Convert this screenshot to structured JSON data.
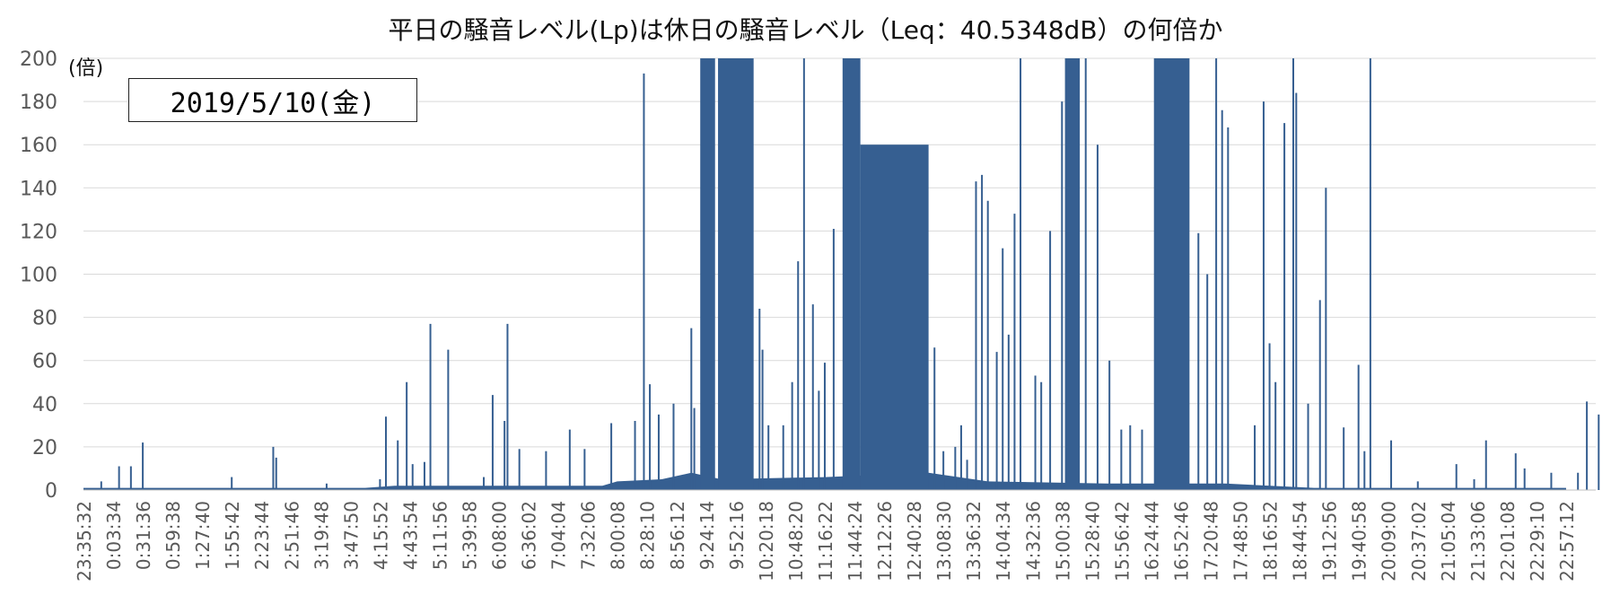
{
  "chart_data": {
    "type": "area",
    "title": "平日の騒音レベル(Lp)は休日の騒音レベル（Leq：40.5348dB）の何倍か",
    "unit_label": "(倍)",
    "annotation": "2019/5/10(金)",
    "ylim": [
      0,
      200
    ],
    "y_ticks": [
      0,
      20,
      40,
      60,
      80,
      100,
      120,
      140,
      160,
      180,
      200
    ],
    "grid": true,
    "legend": "none",
    "series_color": "#365f91",
    "x_tick_labels": [
      "23:35:32",
      "0:03:34",
      "0:31:36",
      "0:59:38",
      "1:27:40",
      "1:55:42",
      "2:23:44",
      "2:51:46",
      "3:19:48",
      "3:47:50",
      "4:15:52",
      "4:43:54",
      "5:11:56",
      "5:39:58",
      "6:08:00",
      "6:36:02",
      "7:04:04",
      "7:32:06",
      "8:00:08",
      "8:28:10",
      "8:56:12",
      "9:24:14",
      "9:52:16",
      "10:20:18",
      "10:48:20",
      "11:16:22",
      "11:44:24",
      "12:12:26",
      "12:40:28",
      "13:08:30",
      "13:36:32",
      "14:04:34",
      "14:32:36",
      "15:00:38",
      "15:28:40",
      "15:56:42",
      "16:24:44",
      "16:52:46",
      "17:20:48",
      "17:48:50",
      "18:16:52",
      "18:44:54",
      "19:12:56",
      "19:40:58",
      "20:09:00",
      "20:37:02",
      "21:05:04",
      "21:33:06",
      "22:01:08",
      "22:29:10",
      "22:57:12"
    ],
    "baseline_profile": [
      {
        "x": 0.0,
        "y": 1
      },
      {
        "x": 9.5,
        "y": 1
      },
      {
        "x": 10.5,
        "y": 2
      },
      {
        "x": 17.5,
        "y": 2
      },
      {
        "x": 18.0,
        "y": 4
      },
      {
        "x": 19.5,
        "y": 5
      },
      {
        "x": 20.5,
        "y": 8
      },
      {
        "x": 21.5,
        "y": 5
      },
      {
        "x": 25.0,
        "y": 6
      },
      {
        "x": 28.5,
        "y": 8
      },
      {
        "x": 30.5,
        "y": 4
      },
      {
        "x": 34.5,
        "y": 3
      },
      {
        "x": 36.5,
        "y": 3
      },
      {
        "x": 38.5,
        "y": 3
      },
      {
        "x": 41.5,
        "y": 1
      },
      {
        "x": 50.0,
        "y": 1
      }
    ],
    "saturated_regions": [
      {
        "start": 20.8,
        "end": 21.3,
        "level": 200
      },
      {
        "start": 21.4,
        "end": 22.6,
        "level": 200
      },
      {
        "start": 25.6,
        "end": 26.2,
        "level": 200
      },
      {
        "start": 26.2,
        "end": 28.5,
        "level": 160
      },
      {
        "start": 33.1,
        "end": 33.6,
        "level": 200
      },
      {
        "start": 36.1,
        "end": 37.3,
        "level": 200
      }
    ],
    "spikes": [
      {
        "x": 0.6,
        "y": 4
      },
      {
        "x": 1.2,
        "y": 11
      },
      {
        "x": 1.6,
        "y": 11
      },
      {
        "x": 2.0,
        "y": 22
      },
      {
        "x": 5.0,
        "y": 6
      },
      {
        "x": 6.4,
        "y": 20
      },
      {
        "x": 6.5,
        "y": 15
      },
      {
        "x": 8.2,
        "y": 3
      },
      {
        "x": 10.0,
        "y": 5
      },
      {
        "x": 10.2,
        "y": 34
      },
      {
        "x": 10.6,
        "y": 23
      },
      {
        "x": 10.9,
        "y": 50
      },
      {
        "x": 11.1,
        "y": 12
      },
      {
        "x": 11.5,
        "y": 13
      },
      {
        "x": 11.7,
        "y": 77
      },
      {
        "x": 12.3,
        "y": 65
      },
      {
        "x": 13.5,
        "y": 6
      },
      {
        "x": 13.8,
        "y": 44
      },
      {
        "x": 14.2,
        "y": 32
      },
      {
        "x": 14.3,
        "y": 77
      },
      {
        "x": 14.7,
        "y": 19
      },
      {
        "x": 15.6,
        "y": 18
      },
      {
        "x": 16.4,
        "y": 28
      },
      {
        "x": 16.9,
        "y": 19
      },
      {
        "x": 17.8,
        "y": 31
      },
      {
        "x": 18.6,
        "y": 32
      },
      {
        "x": 18.9,
        "y": 193
      },
      {
        "x": 19.1,
        "y": 49
      },
      {
        "x": 19.4,
        "y": 35
      },
      {
        "x": 19.9,
        "y": 40
      },
      {
        "x": 20.5,
        "y": 75
      },
      {
        "x": 20.6,
        "y": 38
      },
      {
        "x": 22.8,
        "y": 84
      },
      {
        "x": 22.9,
        "y": 65
      },
      {
        "x": 23.1,
        "y": 30
      },
      {
        "x": 23.6,
        "y": 30
      },
      {
        "x": 23.9,
        "y": 50
      },
      {
        "x": 24.1,
        "y": 106
      },
      {
        "x": 24.3,
        "y": 200
      },
      {
        "x": 24.6,
        "y": 86
      },
      {
        "x": 24.8,
        "y": 46
      },
      {
        "x": 25.0,
        "y": 59
      },
      {
        "x": 25.3,
        "y": 121
      },
      {
        "x": 28.7,
        "y": 66
      },
      {
        "x": 29.0,
        "y": 18
      },
      {
        "x": 29.4,
        "y": 20
      },
      {
        "x": 29.6,
        "y": 30
      },
      {
        "x": 29.8,
        "y": 14
      },
      {
        "x": 30.1,
        "y": 143
      },
      {
        "x": 30.3,
        "y": 146
      },
      {
        "x": 30.5,
        "y": 134
      },
      {
        "x": 30.8,
        "y": 64
      },
      {
        "x": 31.0,
        "y": 112
      },
      {
        "x": 31.2,
        "y": 72
      },
      {
        "x": 31.4,
        "y": 128
      },
      {
        "x": 31.6,
        "y": 200
      },
      {
        "x": 32.1,
        "y": 53
      },
      {
        "x": 32.3,
        "y": 50
      },
      {
        "x": 32.6,
        "y": 120
      },
      {
        "x": 33.0,
        "y": 180
      },
      {
        "x": 33.8,
        "y": 200
      },
      {
        "x": 34.2,
        "y": 160
      },
      {
        "x": 34.6,
        "y": 60
      },
      {
        "x": 35.0,
        "y": 28
      },
      {
        "x": 35.3,
        "y": 30
      },
      {
        "x": 35.7,
        "y": 28
      },
      {
        "x": 37.6,
        "y": 119
      },
      {
        "x": 37.9,
        "y": 100
      },
      {
        "x": 38.2,
        "y": 200
      },
      {
        "x": 38.4,
        "y": 176
      },
      {
        "x": 38.6,
        "y": 168
      },
      {
        "x": 39.5,
        "y": 30
      },
      {
        "x": 39.8,
        "y": 180
      },
      {
        "x": 40.0,
        "y": 68
      },
      {
        "x": 40.2,
        "y": 50
      },
      {
        "x": 40.5,
        "y": 170
      },
      {
        "x": 40.8,
        "y": 200
      },
      {
        "x": 40.9,
        "y": 184
      },
      {
        "x": 41.3,
        "y": 40
      },
      {
        "x": 41.7,
        "y": 88
      },
      {
        "x": 41.9,
        "y": 140
      },
      {
        "x": 42.5,
        "y": 29
      },
      {
        "x": 43.0,
        "y": 58
      },
      {
        "x": 43.2,
        "y": 18
      },
      {
        "x": 43.4,
        "y": 200
      },
      {
        "x": 44.1,
        "y": 23
      },
      {
        "x": 45.0,
        "y": 4
      },
      {
        "x": 46.3,
        "y": 12
      },
      {
        "x": 46.9,
        "y": 5
      },
      {
        "x": 47.3,
        "y": 23
      },
      {
        "x": 48.3,
        "y": 17
      },
      {
        "x": 48.6,
        "y": 10
      },
      {
        "x": 49.5,
        "y": 8
      },
      {
        "x": 50.4,
        "y": 8
      },
      {
        "x": 50.7,
        "y": 41
      },
      {
        "x": 51.1,
        "y": 35
      }
    ]
  }
}
